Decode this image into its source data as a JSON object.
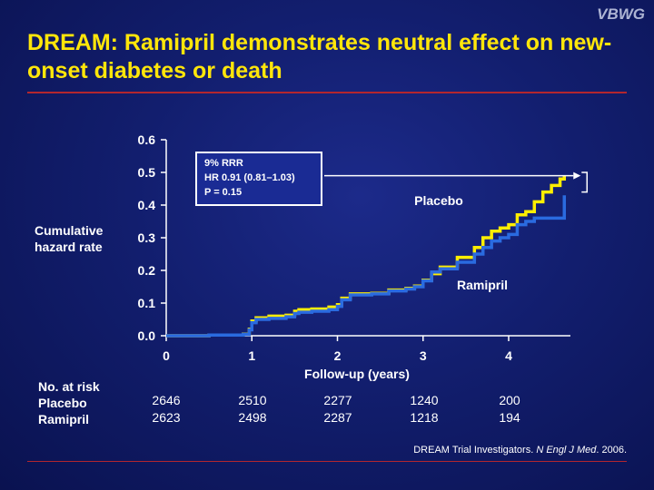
{
  "brand": "VBWG",
  "title": "DREAM: Ramipril demonstrates neutral effect on new-onset diabetes or death",
  "citation": {
    "prefix": "DREAM Trial Investigators. ",
    "journal": "N Engl J Med",
    "suffix": ". 2006."
  },
  "callout": [
    "9% RRR",
    "HR 0.91 (0.81–1.03)",
    "P = 0.15"
  ],
  "at_risk": {
    "header": "No. at risk",
    "rows": [
      {
        "label": "Placebo",
        "values": [
          "2646",
          "2510",
          "2277",
          "1240",
          "200"
        ]
      },
      {
        "label": "Ramipril",
        "values": [
          "2623",
          "2498",
          "2287",
          "1218",
          "194"
        ]
      }
    ]
  },
  "colors": {
    "placebo": "#ffee00",
    "ramipril": "#2a6be0",
    "title": "#ffe60a",
    "rule": "#b3262e"
  },
  "chart_data": {
    "type": "line",
    "xlabel": "Follow-up (years)",
    "ylabel": "Cumulative hazard rate",
    "xlim": [
      0,
      4.7
    ],
    "ylim": [
      0,
      0.6
    ],
    "xticks": [
      "0",
      "1",
      "2",
      "3",
      "4"
    ],
    "yticks": [
      "0.0",
      "0.1",
      "0.2",
      "0.3",
      "0.4",
      "0.5",
      "0.6"
    ],
    "series": [
      {
        "name": "Placebo",
        "x": [
          0,
          0.5,
          0.9,
          0.97,
          1.0,
          1.05,
          1.2,
          1.4,
          1.5,
          1.55,
          1.7,
          1.9,
          2.0,
          2.05,
          2.15,
          2.4,
          2.6,
          2.8,
          2.9,
          3.0,
          3.1,
          3.2,
          3.4,
          3.6,
          3.7,
          3.8,
          3.9,
          4.0,
          4.1,
          4.2,
          4.3,
          4.4,
          4.5,
          4.6,
          4.65
        ],
        "y": [
          0,
          0.002,
          0.005,
          0.02,
          0.045,
          0.055,
          0.06,
          0.063,
          0.075,
          0.08,
          0.082,
          0.088,
          0.095,
          0.115,
          0.128,
          0.13,
          0.14,
          0.145,
          0.152,
          0.17,
          0.19,
          0.21,
          0.24,
          0.27,
          0.3,
          0.32,
          0.33,
          0.34,
          0.37,
          0.38,
          0.41,
          0.44,
          0.46,
          0.48,
          0.49
        ]
      },
      {
        "name": "Ramipril",
        "x": [
          0,
          0.5,
          0.9,
          0.97,
          1.0,
          1.05,
          1.2,
          1.4,
          1.5,
          1.55,
          1.7,
          1.9,
          2.0,
          2.05,
          2.15,
          2.4,
          2.6,
          2.8,
          2.9,
          3.0,
          3.1,
          3.2,
          3.4,
          3.6,
          3.7,
          3.8,
          3.9,
          4.0,
          4.1,
          4.2,
          4.3,
          4.4,
          4.5,
          4.6,
          4.65
        ],
        "y": [
          0,
          0.002,
          0.004,
          0.018,
          0.04,
          0.05,
          0.053,
          0.058,
          0.068,
          0.072,
          0.075,
          0.08,
          0.09,
          0.11,
          0.125,
          0.128,
          0.137,
          0.143,
          0.15,
          0.168,
          0.195,
          0.205,
          0.225,
          0.25,
          0.27,
          0.29,
          0.3,
          0.31,
          0.34,
          0.35,
          0.36,
          0.36,
          0.36,
          0.36,
          0.43
        ]
      }
    ],
    "series_labels": [
      "Placebo",
      "Ramipril"
    ]
  }
}
